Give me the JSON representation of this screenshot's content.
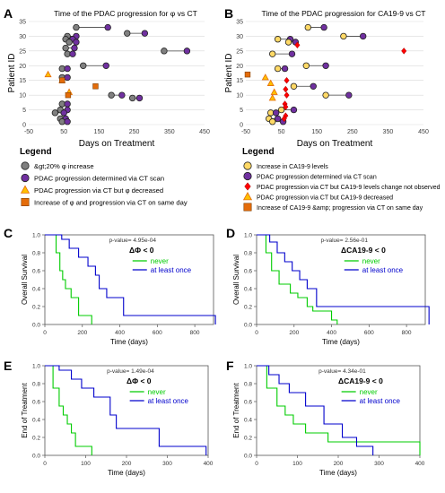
{
  "panels": {
    "A": "A",
    "B": "B",
    "C": "C",
    "D": "D",
    "E": "E",
    "F": "F"
  },
  "legend_a": {
    "title": "Legend",
    "items": [
      {
        "label": "&gt;20% φ increase",
        "marker": "circle",
        "color": "#7f7f7f"
      },
      {
        "label": "PDAC progression determined via CT scan",
        "marker": "circle",
        "color": "#7030a0"
      },
      {
        "label": "PDAC progression via CT but φ decreased",
        "marker": "triangle",
        "color": "#ffc000"
      },
      {
        "label": "Increase of φ and progression via CT on same day",
        "marker": "square",
        "color": "#e46c0a"
      }
    ]
  },
  "legend_b": {
    "title": "Legend",
    "items": [
      {
        "label": "Increase in CA19-9 levels",
        "marker": "circle",
        "color": "#ffd966"
      },
      {
        "label": "PDAC progression determined via CT scan",
        "marker": "circle",
        "color": "#7030a0"
      },
      {
        "label": "PDAC progression via CT but CA19-9 levels change not observed",
        "marker": "diamond",
        "color": "#ff0000"
      },
      {
        "label": "PDAC progression via CT but CA19-9 decreased",
        "marker": "triangle",
        "color": "#ffc000"
      },
      {
        "label": "Increase of CA19-9 &amp; progression via CT on same day",
        "marker": "square",
        "color": "#e46c0a"
      }
    ]
  },
  "chart_data": [
    {
      "panel": "A",
      "type": "scatter",
      "title": "Time of the PDAC progression for φ vs CT",
      "xlabel": "Days on Treatment",
      "ylabel": "Patient ID",
      "xlim": [
        -50,
        450
      ],
      "ylim": [
        0,
        35
      ],
      "xticks": [
        -50,
        50,
        150,
        250,
        350,
        450
      ],
      "yticks": [
        0,
        5,
        10,
        15,
        20,
        25,
        30,
        35
      ],
      "pairs": [
        {
          "id": 33,
          "phi": 85,
          "ct": 175
        },
        {
          "id": 31,
          "phi": 230,
          "ct": 280
        },
        {
          "id": 30,
          "phi": 60,
          "ct": 85
        },
        {
          "id": 29,
          "phi": 55,
          "ct": 75
        },
        {
          "id": 28,
          "phi": 65,
          "ct": 85
        },
        {
          "id": 26,
          "phi": 55,
          "ct": 80
        },
        {
          "id": 25,
          "phi": 335,
          "ct": 400
        },
        {
          "id": 24,
          "phi": 60,
          "ct": 75
        },
        {
          "id": 20,
          "phi": 105,
          "ct": 170
        },
        {
          "id": 19,
          "phi": 45,
          "ct": 60
        },
        {
          "id": 16,
          "phi": 45,
          "ct": 60
        },
        {
          "id": 10,
          "phi": 185,
          "ct": 215
        },
        {
          "id": 9,
          "phi": 245,
          "ct": 265
        },
        {
          "id": 7,
          "phi": 45,
          "ct": 60
        },
        {
          "id": 5,
          "phi": 40,
          "ct": 60
        },
        {
          "id": 4,
          "phi": 25,
          "ct": 50
        },
        {
          "id": 2,
          "phi": 40,
          "ct": 55
        },
        {
          "id": 1,
          "phi": 45,
          "ct": 60
        }
      ],
      "triangles": [
        {
          "id": 17,
          "x": 5
        },
        {
          "id": 15,
          "x": 45
        },
        {
          "id": 11,
          "x": 65
        }
      ],
      "squares": [
        {
          "id": 15,
          "x": 45
        },
        {
          "id": 13,
          "x": 140
        },
        {
          "id": 10,
          "x": 62
        }
      ]
    },
    {
      "panel": "B",
      "type": "scatter",
      "title": "Time of the PDAC progression for CA19-9 vs CT",
      "xlabel": "Days on Treatment",
      "ylabel": "Patient ID",
      "xlim": [
        -50,
        450
      ],
      "ylim": [
        0,
        35
      ],
      "xticks": [
        -50,
        50,
        150,
        250,
        350,
        450
      ],
      "yticks": [
        0,
        5,
        10,
        15,
        20,
        25,
        30,
        35
      ],
      "pairs": [
        {
          "id": 33,
          "ca": 125,
          "ct": 170
        },
        {
          "id": 30,
          "ca": 225,
          "ct": 280
        },
        {
          "id": 29,
          "ca": 40,
          "ct": 75
        },
        {
          "id": 28,
          "ca": 70,
          "ct": 90
        },
        {
          "id": 24,
          "ca": 25,
          "ct": 80
        },
        {
          "id": 20,
          "ca": 120,
          "ct": 175
        },
        {
          "id": 19,
          "ca": 40,
          "ct": 60
        },
        {
          "id": 13,
          "ca": 85,
          "ct": 140
        },
        {
          "id": 10,
          "ca": 175,
          "ct": 240
        },
        {
          "id": 5,
          "ca": 50,
          "ct": 85
        },
        {
          "id": 4,
          "ca": 20,
          "ct": 35
        },
        {
          "id": 2,
          "ca": 15,
          "ct": 40
        },
        {
          "id": 1,
          "ca": 25,
          "ct": 55
        }
      ],
      "diamonds": [
        {
          "id": 27,
          "x": 95
        },
        {
          "id": 25,
          "x": 395
        },
        {
          "id": 15,
          "x": 65
        },
        {
          "id": 12,
          "x": 62
        },
        {
          "id": 10,
          "x": 65
        },
        {
          "id": 7,
          "x": 60
        },
        {
          "id": 6,
          "x": 62
        },
        {
          "id": 3,
          "x": 62
        },
        {
          "id": 2,
          "x": 58
        }
      ],
      "triangles": [
        {
          "id": 16,
          "x": 5
        },
        {
          "id": 14,
          "x": 20
        },
        {
          "id": 11,
          "x": 30
        },
        {
          "id": 9,
          "x": 25
        }
      ],
      "squares": [
        {
          "id": 17,
          "x": -45
        }
      ]
    },
    {
      "panel": "C",
      "type": "line",
      "step": true,
      "title": "ΔΦ < 0",
      "pvalue": "p-value= 4.95e-04",
      "xlabel": "Time (days)",
      "ylabel": "Overall Survival",
      "xlim": [
        0,
        900
      ],
      "ylim": [
        0,
        1
      ],
      "xticks": [
        0,
        200,
        400,
        600,
        800
      ],
      "yticks": [
        0.0,
        0.2,
        0.4,
        0.6,
        0.8,
        1.0
      ],
      "series": [
        {
          "name": "never",
          "color": "#00cc00",
          "x": [
            0,
            60,
            80,
            95,
            110,
            140,
            180,
            250
          ],
          "y": [
            1.0,
            0.8,
            0.6,
            0.5,
            0.4,
            0.3,
            0.1,
            0.0
          ]
        },
        {
          "name": "at least once",
          "color": "#0000cc",
          "x": [
            0,
            90,
            130,
            180,
            230,
            270,
            290,
            330,
            420,
            910
          ],
          "y": [
            1.0,
            0.95,
            0.85,
            0.75,
            0.65,
            0.55,
            0.4,
            0.3,
            0.1,
            0.0
          ]
        }
      ]
    },
    {
      "panel": "D",
      "type": "line",
      "step": true,
      "title": "ΔCA19-9 < 0",
      "pvalue": "p-value= 2.56e-01",
      "xlabel": "Time (days)",
      "ylabel": "Overall Survival",
      "xlim": [
        0,
        900
      ],
      "ylim": [
        0,
        1
      ],
      "xticks": [
        0,
        200,
        400,
        600,
        800
      ],
      "yticks": [
        0.0,
        0.2,
        0.4,
        0.6,
        0.8,
        1.0
      ],
      "series": [
        {
          "name": "never",
          "color": "#00cc00",
          "x": [
            0,
            50,
            80,
            120,
            180,
            220,
            270,
            300,
            400,
            430
          ],
          "y": [
            1.0,
            0.8,
            0.6,
            0.45,
            0.35,
            0.3,
            0.2,
            0.15,
            0.05,
            0.0
          ]
        },
        {
          "name": "at least once",
          "color": "#0000cc",
          "x": [
            0,
            70,
            110,
            150,
            190,
            230,
            270,
            320,
            920
          ],
          "y": [
            1.0,
            0.92,
            0.8,
            0.7,
            0.6,
            0.5,
            0.4,
            0.2,
            0.0
          ]
        }
      ]
    },
    {
      "panel": "E",
      "type": "line",
      "step": true,
      "title": "ΔΦ < 0",
      "pvalue": "p-value= 1.49e-04",
      "xlabel": "Time (days)",
      "ylabel": "End of Treatment",
      "xlim": [
        0,
        400
      ],
      "ylim": [
        0,
        1
      ],
      "xticks": [
        0,
        100,
        200,
        300,
        400
      ],
      "yticks": [
        0.0,
        0.2,
        0.4,
        0.6,
        0.8,
        1.0
      ],
      "series": [
        {
          "name": "never",
          "color": "#00cc00",
          "x": [
            0,
            20,
            35,
            45,
            55,
            65,
            75,
            115
          ],
          "y": [
            1.0,
            0.75,
            0.55,
            0.45,
            0.35,
            0.25,
            0.1,
            0.0
          ]
        },
        {
          "name": "at least once",
          "color": "#0000cc",
          "x": [
            0,
            35,
            65,
            90,
            120,
            160,
            175,
            280,
            395
          ],
          "y": [
            1.0,
            0.95,
            0.85,
            0.75,
            0.65,
            0.45,
            0.3,
            0.1,
            0.0
          ]
        }
      ]
    },
    {
      "panel": "F",
      "type": "line",
      "step": true,
      "title": "ΔCA19-9 < 0",
      "pvalue": "p-value= 4.34e-01",
      "xlabel": "Time (days)",
      "ylabel": "End of Treatment",
      "xlim": [
        0,
        400
      ],
      "ylim": [
        0,
        1
      ],
      "xticks": [
        0,
        100,
        200,
        300,
        400
      ],
      "yticks": [
        0.0,
        0.2,
        0.4,
        0.6,
        0.8,
        1.0
      ],
      "series": [
        {
          "name": "never",
          "color": "#00cc00",
          "x": [
            0,
            25,
            50,
            70,
            90,
            120,
            175,
            400
          ],
          "y": [
            1.0,
            0.75,
            0.55,
            0.45,
            0.35,
            0.25,
            0.15,
            0.0
          ]
        },
        {
          "name": "at least once",
          "color": "#0000cc",
          "x": [
            0,
            30,
            55,
            80,
            120,
            165,
            210,
            245,
            285
          ],
          "y": [
            1.0,
            0.9,
            0.8,
            0.7,
            0.55,
            0.35,
            0.2,
            0.1,
            0.0
          ]
        }
      ]
    }
  ]
}
